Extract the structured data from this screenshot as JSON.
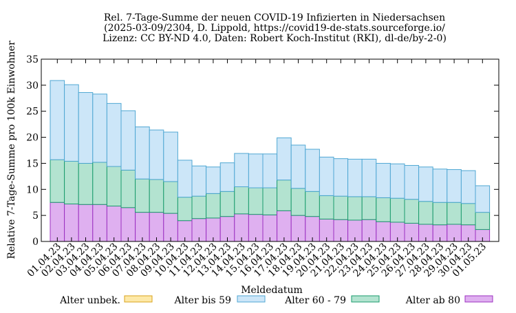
{
  "chart_data": {
    "type": "bar",
    "stacked": true,
    "title_lines": [
      "Rel. 7-Tage-Summe der neuen COVID-19 Infizierten in Niedersachsen",
      "(2025-03-09/2304, D. Lippold, https://covid19-de-stats.sourceforge.io/",
      "Lizenz: CC BY-ND 4.0, Daten: Robert Koch-Institut (RKI), dl-de/by-2-0)"
    ],
    "xlabel": "Meldedatum",
    "ylabel": "Relative 7-Tage-Summe pro 100k Einwohner",
    "ylim": [
      0,
      35
    ],
    "yticks": [
      0,
      5,
      10,
      15,
      20,
      25,
      30,
      35
    ],
    "grid": false,
    "legend_position": "bottom",
    "categories": [
      "01.04.23",
      "02.04.23",
      "03.04.23",
      "04.04.23",
      "05.04.23",
      "06.04.23",
      "07.04.23",
      "08.04.23",
      "09.04.23",
      "10.04.23",
      "11.04.23",
      "12.04.23",
      "13.04.23",
      "14.04.23",
      "15.04.23",
      "16.04.23",
      "17.04.23",
      "18.04.23",
      "19.04.23",
      "20.04.23",
      "21.04.23",
      "22.04.23",
      "23.04.23",
      "24.04.23",
      "25.04.23",
      "26.04.23",
      "27.04.23",
      "28.04.23",
      "29.04.23",
      "30.04.23",
      "01.05.23"
    ],
    "series": [
      {
        "name": "Alter unbek.",
        "fill": "#fde9a8",
        "stroke": "#d9a21b",
        "values": [
          0,
          0,
          0,
          0,
          0,
          0,
          0,
          0,
          0,
          0,
          0,
          0,
          0,
          0,
          0,
          0,
          0,
          0,
          0,
          0,
          0,
          0,
          0,
          0,
          0,
          0,
          0,
          0,
          0,
          0,
          0
        ]
      },
      {
        "name": "Alter bis 59",
        "fill": "#cce6f8",
        "stroke": "#4fa7d3",
        "values": [
          15.2,
          14.7,
          13.6,
          13.1,
          12.1,
          11.4,
          10.0,
          9.5,
          9.5,
          7.1,
          5.8,
          5.1,
          5.5,
          6.4,
          6.5,
          6.5,
          8.1,
          8.3,
          8.1,
          7.4,
          7.2,
          7.2,
          7.2,
          6.6,
          6.6,
          6.5,
          6.6,
          6.4,
          6.3,
          6.3,
          5.1
        ]
      },
      {
        "name": "Alter 60 - 79",
        "fill": "#b3e3d0",
        "stroke": "#1a9b6c",
        "values": [
          8.2,
          8.2,
          7.9,
          8.1,
          7.6,
          7.2,
          6.4,
          6.3,
          6.1,
          4.5,
          4.3,
          4.7,
          4.8,
          5.2,
          5.1,
          5.2,
          5.9,
          5.2,
          4.8,
          4.5,
          4.5,
          4.5,
          4.4,
          4.6,
          4.6,
          4.6,
          4.4,
          4.3,
          4.2,
          4.1,
          3.3
        ]
      },
      {
        "name": "Alter ab 80",
        "fill": "#dfb0f0",
        "stroke": "#9b2fc0",
        "values": [
          7.5,
          7.2,
          7.1,
          7.1,
          6.8,
          6.5,
          5.6,
          5.6,
          5.4,
          4.0,
          4.4,
          4.5,
          4.8,
          5.3,
          5.2,
          5.1,
          5.9,
          5.0,
          4.8,
          4.3,
          4.2,
          4.1,
          4.2,
          3.8,
          3.7,
          3.5,
          3.3,
          3.2,
          3.3,
          3.2,
          2.3
        ]
      }
    ]
  }
}
